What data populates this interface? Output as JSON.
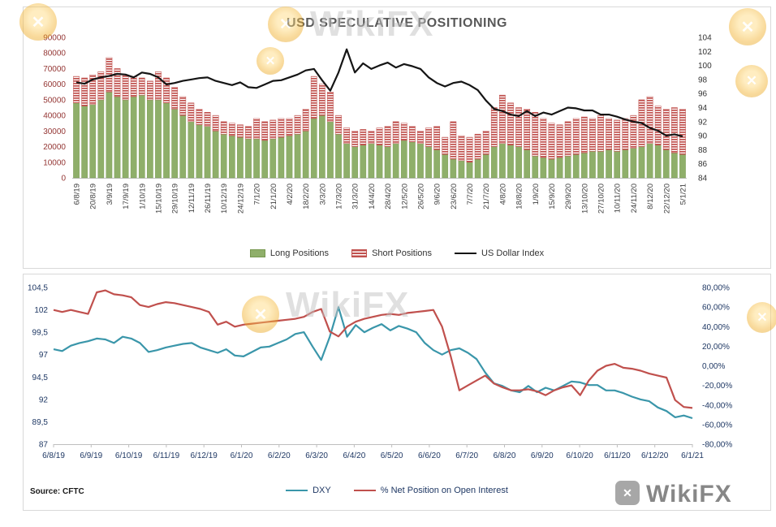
{
  "watermark": {
    "brand": "WikiFX"
  },
  "chart_data": [
    {
      "type": "bar",
      "title": "USD SPECULATIVE POSITIONING",
      "legend_position": "bottom",
      "grid": false,
      "x_tick_labels": [
        "6/8/19",
        "20/8/19",
        "3/9/19",
        "17/9/19",
        "1/10/19",
        "15/10/19",
        "29/10/19",
        "12/11/19",
        "26/11/19",
        "10/12/19",
        "24/12/19",
        "7/1/20",
        "21/1/20",
        "4/2/20",
        "18/2/20",
        "3/3/20",
        "17/3/20",
        "31/3/20",
        "14/4/20",
        "28/4/20",
        "12/5/20",
        "26/5/20",
        "9/6/20",
        "23/6/20",
        "7/7/20",
        "21/7/20",
        "4/8/20",
        "18/8/20",
        "1/9/20",
        "15/9/20",
        "29/9/20",
        "13/10/20",
        "27/10/20",
        "10/11/20",
        "24/11/20",
        "8/12/20",
        "22/12/20",
        "5/1/21"
      ],
      "bars_per_tick": 2,
      "left_axis": {
        "min": 0,
        "max": 90000,
        "step": 10000,
        "labels": [
          "90000",
          "80000",
          "70000",
          "60000",
          "50000",
          "40000",
          "30000",
          "20000",
          "10000",
          "0"
        ]
      },
      "right_axis": {
        "min": 84,
        "max": 104,
        "step": 2,
        "labels": [
          "104",
          "102",
          "100",
          "98",
          "96",
          "94",
          "92",
          "90",
          "88",
          "86",
          "84"
        ]
      },
      "series": [
        {
          "name": "Long Positions",
          "type": "bar",
          "stacked": true,
          "color": "#8faf6a",
          "edge": "#76984f",
          "values": [
            48000,
            46000,
            47000,
            50000,
            55000,
            52000,
            50000,
            52000,
            53000,
            50000,
            50000,
            48000,
            44000,
            40000,
            36000,
            34000,
            33000,
            30000,
            28000,
            27000,
            26000,
            25000,
            25000,
            24000,
            25000,
            26000,
            27000,
            28000,
            30000,
            38000,
            40000,
            36000,
            28000,
            22000,
            20000,
            21000,
            22000,
            21000,
            20000,
            22000,
            24000,
            23000,
            22000,
            20000,
            18000,
            15000,
            12000,
            11000,
            10000,
            12000,
            15000,
            20000,
            22000,
            21000,
            20000,
            18000,
            14000,
            13000,
            12000,
            13000,
            14000,
            15000,
            16000,
            17000,
            17000,
            18000,
            17000,
            18000,
            19000,
            20000,
            22000,
            21000,
            18000,
            16000,
            15000
          ]
        },
        {
          "name": "Short Positions",
          "type": "bar",
          "stacked": true,
          "color": "#c0504d",
          "pattern": "horizontal-stripes",
          "values": [
            17000,
            18000,
            19000,
            18000,
            22000,
            18000,
            16000,
            13000,
            11000,
            12000,
            18000,
            16000,
            14000,
            12000,
            12000,
            10000,
            9000,
            10000,
            8000,
            8000,
            8000,
            8000,
            13000,
            12000,
            12000,
            12000,
            11000,
            12000,
            14000,
            27000,
            20000,
            19000,
            12000,
            10000,
            10000,
            10000,
            8000,
            11000,
            13000,
            14000,
            11000,
            10000,
            8000,
            12000,
            15000,
            11000,
            24000,
            16000,
            16000,
            16000,
            15000,
            25000,
            31000,
            27000,
            25000,
            26000,
            28000,
            25000,
            23000,
            21000,
            22000,
            23000,
            23000,
            21000,
            23000,
            20000,
            20000,
            20000,
            21000,
            30000,
            30000,
            25000,
            26000,
            29000,
            29000
          ]
        },
        {
          "name": "US Dollar Index",
          "type": "line",
          "axis": "right",
          "color": "#151515",
          "values": [
            97.6,
            97.4,
            98.0,
            98.3,
            98.5,
            98.8,
            98.7,
            98.3,
            99.0,
            98.8,
            98.3,
            97.3,
            97.5,
            97.8,
            98.0,
            98.2,
            98.3,
            97.8,
            97.5,
            97.2,
            97.6,
            96.9,
            96.8,
            97.3,
            97.8,
            97.9,
            98.3,
            98.7,
            99.3,
            99.5,
            97.9,
            96.4,
            99.0,
            102.3,
            99.0,
            100.3,
            99.5,
            100.0,
            100.4,
            99.7,
            100.2,
            99.9,
            99.5,
            98.3,
            97.5,
            97.0,
            97.5,
            97.7,
            97.2,
            96.5,
            95.0,
            93.8,
            93.5,
            93.0,
            92.8,
            93.5,
            92.8,
            93.3,
            93.0,
            93.5,
            94.0,
            93.9,
            93.6,
            93.6,
            93.0,
            93.0,
            92.7,
            92.3,
            92.0,
            91.8,
            91.1,
            90.7,
            90.0,
            90.2,
            89.9
          ]
        }
      ]
    },
    {
      "type": "line",
      "title": "",
      "legend_position": "bottom",
      "grid": false,
      "source": "Source: CFTC",
      "x_tick_labels": [
        "6/8/19",
        "6/9/19",
        "6/10/19",
        "6/11/19",
        "6/12/19",
        "6/1/20",
        "6/2/20",
        "6/3/20",
        "6/4/20",
        "6/5/20",
        "6/6/20",
        "6/7/20",
        "6/8/20",
        "6/9/20",
        "6/10/20",
        "6/11/20",
        "6/12/20",
        "6/1/21"
      ],
      "left_axis": {
        "min": 87,
        "max": 104.5,
        "step": 2.5,
        "labels": [
          "104,5",
          "102",
          "99,5",
          "97",
          "94,5",
          "92",
          "89,5",
          "87"
        ]
      },
      "right_axis": {
        "min": -80,
        "max": 80,
        "step": 20,
        "labels": [
          "80,00%",
          "60,00%",
          "40,00%",
          "20,00%",
          "0,00%",
          "-20,00%",
          "-40,00%",
          "-60,00%",
          "-80,00%"
        ]
      },
      "series": [
        {
          "name": "DXY",
          "type": "line",
          "axis": "left",
          "color": "#3a96aa",
          "values": [
            97.6,
            97.4,
            98.0,
            98.3,
            98.5,
            98.8,
            98.7,
            98.3,
            99.0,
            98.8,
            98.3,
            97.3,
            97.5,
            97.8,
            98.0,
            98.2,
            98.3,
            97.8,
            97.5,
            97.2,
            97.6,
            96.9,
            96.8,
            97.3,
            97.8,
            97.9,
            98.3,
            98.7,
            99.3,
            99.5,
            97.9,
            96.4,
            99.0,
            102.3,
            99.0,
            100.3,
            99.5,
            100.0,
            100.4,
            99.7,
            100.2,
            99.9,
            99.5,
            98.3,
            97.5,
            97.0,
            97.5,
            97.7,
            97.2,
            96.5,
            95.0,
            93.8,
            93.5,
            93.0,
            92.8,
            93.5,
            92.8,
            93.3,
            93.0,
            93.5,
            94.0,
            93.9,
            93.6,
            93.6,
            93.0,
            93.0,
            92.7,
            92.3,
            92.0,
            91.8,
            91.1,
            90.7,
            90.0,
            90.2,
            89.9
          ]
        },
        {
          "name": "% Net Position on Open Interest",
          "type": "line",
          "axis": "right",
          "color": "#c0504d",
          "values": [
            57,
            55,
            57,
            55,
            53,
            75,
            77,
            73,
            72,
            70,
            62,
            60,
            63,
            65,
            64,
            62,
            60,
            58,
            55,
            42,
            45,
            40,
            42,
            43,
            44,
            45,
            46,
            47,
            48,
            50,
            55,
            58,
            35,
            30,
            40,
            45,
            48,
            50,
            52,
            53,
            52,
            54,
            55,
            56,
            57,
            40,
            10,
            -25,
            -20,
            -15,
            -10,
            -18,
            -22,
            -25,
            -25,
            -24,
            -26,
            -30,
            -25,
            -22,
            -20,
            -30,
            -15,
            -5,
            0,
            2,
            -2,
            -3,
            -5,
            -8,
            -10,
            -12,
            -35,
            -42,
            -43
          ]
        }
      ]
    }
  ]
}
